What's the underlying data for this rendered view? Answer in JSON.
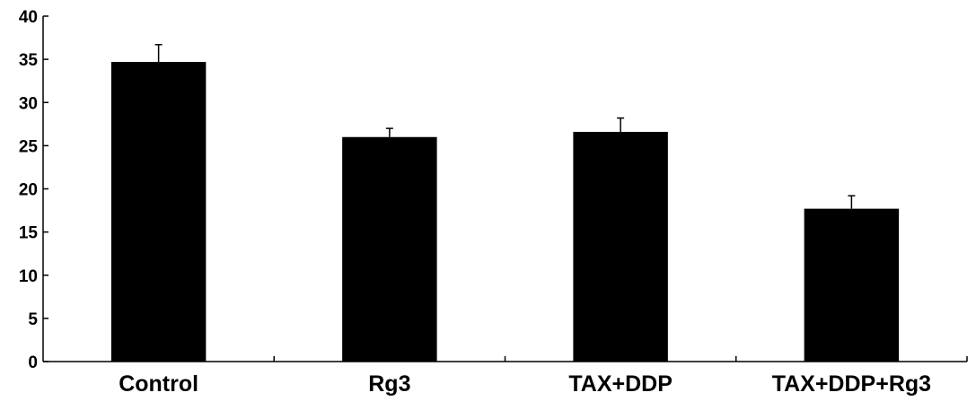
{
  "chart_data": {
    "type": "bar",
    "title": "",
    "xlabel": "",
    "ylabel": "",
    "categories": [
      "Control",
      "Rg3",
      "TAX+DDP",
      "TAX+DDP+Rg3"
    ],
    "values": [
      34.7,
      26.0,
      26.6,
      17.7
    ],
    "errors": [
      2.0,
      1.0,
      1.6,
      1.5
    ],
    "ylim": [
      0,
      40
    ],
    "yticks": [
      0,
      5,
      10,
      15,
      20,
      25,
      30,
      35,
      40
    ],
    "grid": false,
    "legend": "none",
    "bar_color": "#000000"
  }
}
